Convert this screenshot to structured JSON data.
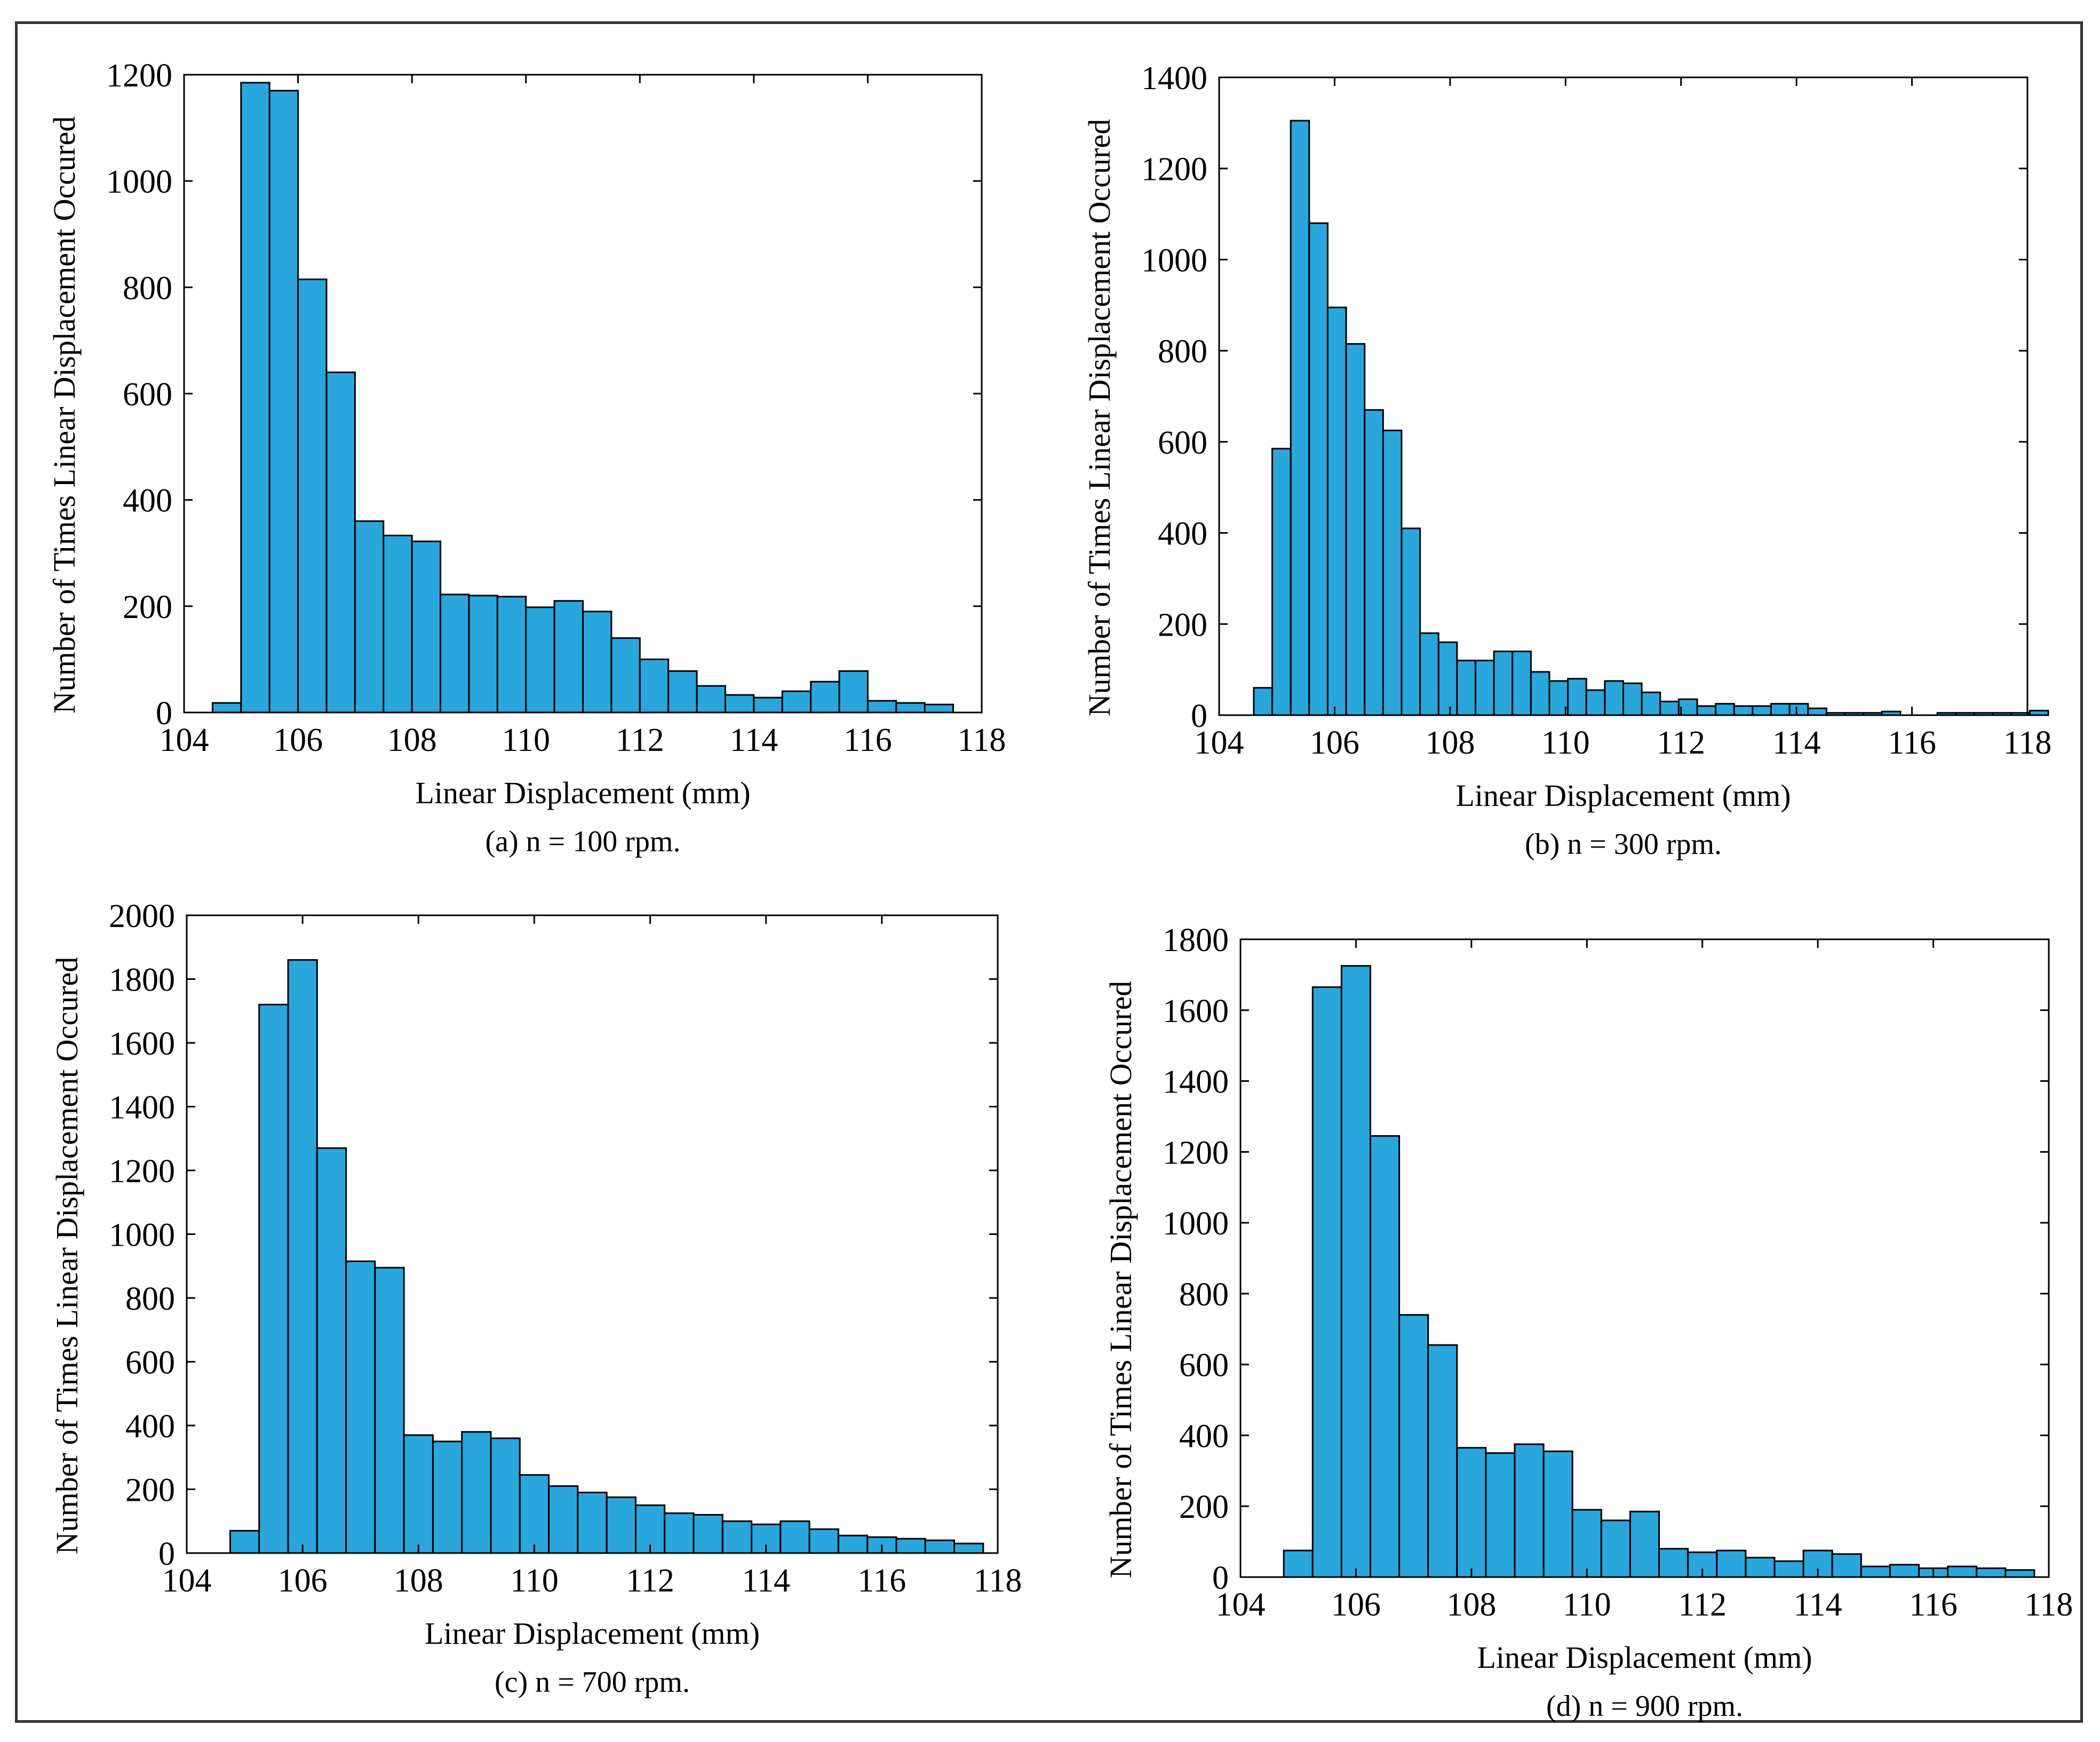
{
  "figure": {
    "colors": {
      "bar_fill": "#29a7dc",
      "bar_edge": "#000000",
      "frame": "#333333"
    }
  },
  "chart_data": [
    {
      "id": "a",
      "type": "bar",
      "caption": "(a) n = 100 rpm.",
      "xlabel": "Linear Displacement (mm)",
      "ylabel": "Number of Times Linear Displacement Occured",
      "xlim": [
        104,
        118
      ],
      "ylim": [
        0,
        1200
      ],
      "xticks": [
        104,
        106,
        108,
        110,
        112,
        114,
        116,
        118
      ],
      "yticks": [
        0,
        200,
        400,
        600,
        800,
        1000,
        1200
      ],
      "bin_start": 104.5,
      "bin_width": 0.5,
      "values": [
        18,
        1185,
        1170,
        815,
        640,
        360,
        333,
        322,
        222,
        220,
        218,
        198,
        210,
        190,
        140,
        100,
        78,
        50,
        33,
        28,
        40,
        58,
        78,
        22,
        18,
        15
      ]
    },
    {
      "id": "b",
      "type": "bar",
      "caption": "(b) n = 300 rpm.",
      "xlabel": "Linear Displacement (mm)",
      "ylabel": "Number of Times Linear Displacement Occured",
      "xlim": [
        104,
        118
      ],
      "ylim": [
        0,
        1400
      ],
      "xticks": [
        104,
        106,
        108,
        110,
        112,
        114,
        116,
        118
      ],
      "yticks": [
        0,
        200,
        400,
        600,
        800,
        1000,
        1200,
        1400
      ],
      "bin_start": 104.6,
      "bin_width": 0.32,
      "values": [
        60,
        585,
        1305,
        1080,
        895,
        815,
        670,
        625,
        410,
        180,
        160,
        120,
        120,
        140,
        140,
        95,
        75,
        80,
        55,
        75,
        70,
        50,
        30,
        35,
        20,
        25,
        20,
        20,
        25,
        25,
        15,
        5,
        5,
        5,
        8,
        0,
        0,
        5,
        5,
        5,
        5,
        5,
        10
      ]
    },
    {
      "id": "c",
      "type": "bar",
      "caption": "(c) n = 700 rpm.",
      "xlabel": "Linear Displacement (mm)",
      "ylabel": "Number of Times Linear Displacement Occured",
      "xlim": [
        104,
        118
      ],
      "ylim": [
        0,
        2000
      ],
      "xticks": [
        104,
        106,
        108,
        110,
        112,
        114,
        116,
        118
      ],
      "yticks": [
        0,
        200,
        400,
        600,
        800,
        1000,
        1200,
        1400,
        1600,
        1800,
        2000
      ],
      "bin_start": 104.75,
      "bin_width": 0.5,
      "values": [
        70,
        1720,
        1860,
        1270,
        915,
        895,
        370,
        350,
        380,
        360,
        245,
        210,
        190,
        175,
        150,
        125,
        120,
        100,
        90,
        100,
        75,
        55,
        50,
        45,
        40,
        30
      ]
    },
    {
      "id": "d",
      "type": "bar",
      "caption": "(d) n = 900 rpm.",
      "xlabel": "Linear Displacement (mm)",
      "ylabel": "Number of Times Linear Displacement Occured",
      "xlim": [
        104,
        118
      ],
      "ylim": [
        0,
        1800
      ],
      "xticks": [
        104,
        106,
        108,
        110,
        112,
        114,
        116,
        118
      ],
      "yticks": [
        0,
        200,
        400,
        600,
        800,
        1000,
        1200,
        1400,
        1600,
        1800
      ],
      "bin_start": 104.75,
      "bin_width": 0.5,
      "values": [
        75,
        1665,
        1725,
        1245,
        740,
        655,
        365,
        350,
        375,
        355,
        190,
        160,
        185,
        80,
        70,
        75,
        55,
        45,
        75,
        65,
        30,
        35,
        25,
        30,
        25,
        20
      ]
    }
  ]
}
